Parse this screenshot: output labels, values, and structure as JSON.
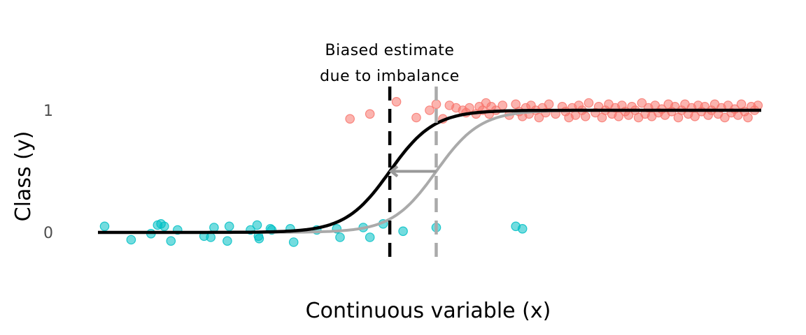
{
  "chart_data": {
    "type": "scatter",
    "xlabel": "Continuous variable (x)",
    "ylabel": "Class (y)",
    "xlim": [
      0,
      100
    ],
    "ylim": [
      -0.3,
      1.3
    ],
    "y_ticks": [
      0,
      1
    ],
    "grid": false,
    "legend": "none",
    "colors": {
      "class0": "#00BFC4",
      "class1": "#F8766D",
      "biased_curve": "#000000",
      "true_curve": "#AAAAAA",
      "arrow": "#999999"
    },
    "annotation": [
      "Biased estimate",
      "due to imbalance"
    ],
    "biased_threshold": 44,
    "true_threshold": 51,
    "curve_steepness": 0.3,
    "x_range": [
      0,
      100
    ],
    "series": [
      {
        "class": 0,
        "points": [
          [
            1,
            0.05
          ],
          [
            5,
            -0.06
          ],
          [
            8,
            -0.01
          ],
          [
            9,
            0.06
          ],
          [
            9.5,
            0.07
          ],
          [
            10,
            0.05
          ],
          [
            11,
            -0.07
          ],
          [
            12,
            0.02
          ],
          [
            16,
            -0.03
          ],
          [
            17,
            -0.04
          ],
          [
            17.5,
            0.04
          ],
          [
            19.5,
            -0.07
          ],
          [
            19.8,
            0.05
          ],
          [
            23,
            0.02
          ],
          [
            24,
            0.06
          ],
          [
            24.2,
            -0.03
          ],
          [
            24.3,
            -0.05
          ],
          [
            26,
            0.03
          ],
          [
            26.2,
            0.02
          ],
          [
            29,
            0.03
          ],
          [
            29.5,
            -0.08
          ],
          [
            33,
            0.02
          ],
          [
            36,
            0.03
          ],
          [
            36.5,
            -0.04
          ],
          [
            40,
            0.04
          ],
          [
            41,
            -0.04
          ],
          [
            43,
            0.07
          ],
          [
            46,
            0.01
          ],
          [
            51,
            0.04
          ],
          [
            63,
            0.05
          ],
          [
            64,
            0.03
          ]
        ]
      },
      {
        "class": 1,
        "points": [
          [
            38,
            0.93
          ],
          [
            41,
            0.97
          ],
          [
            45,
            1.07
          ],
          [
            48,
            0.94
          ],
          [
            50,
            1.0
          ],
          [
            51,
            1.05
          ],
          [
            52,
            0.93
          ],
          [
            53,
            1.04
          ],
          [
            54,
            1.02
          ],
          [
            55,
            1.0
          ],
          [
            55.5,
            0.98
          ],
          [
            56,
            1.02
          ],
          [
            57,
            0.97
          ],
          [
            57.5,
            1.03
          ],
          [
            58,
            1.0
          ],
          [
            58.5,
            1.06
          ],
          [
            59,
            0.97
          ],
          [
            59.3,
            1.03
          ],
          [
            60,
            1.0
          ],
          [
            61,
            1.04
          ],
          [
            62,
            0.96
          ],
          [
            63,
            1.05
          ],
          [
            63.5,
            0.99
          ],
          [
            64,
            0.95
          ],
          [
            64.5,
            1.02
          ],
          [
            65,
            0.97
          ],
          [
            65.3,
            1.04
          ],
          [
            66,
            1.0
          ],
          [
            66.5,
            0.94
          ],
          [
            67,
            1.02
          ],
          [
            67.5,
            0.98
          ],
          [
            68,
            1.05
          ],
          [
            69,
            0.97
          ],
          [
            70,
            1.03
          ],
          [
            70.5,
            0.99
          ],
          [
            71,
            0.94
          ],
          [
            71.5,
            1.02
          ],
          [
            72,
            0.96
          ],
          [
            72.5,
            1.04
          ],
          [
            73,
            1.0
          ],
          [
            73.5,
            0.95
          ],
          [
            74,
            1.06
          ],
          [
            75,
            0.98
          ],
          [
            75.5,
            1.03
          ],
          [
            76,
            0.94
          ],
          [
            76.5,
            1.0
          ],
          [
            77,
            1.05
          ],
          [
            77.5,
            0.97
          ],
          [
            78,
            1.02
          ],
          [
            78.5,
            0.95
          ],
          [
            79,
            1.04
          ],
          [
            79.5,
            0.99
          ],
          [
            80,
            0.96
          ],
          [
            80.5,
            1.03
          ],
          [
            81,
            1.0
          ],
          [
            81.5,
            0.94
          ],
          [
            82,
            1.06
          ],
          [
            82.5,
            0.97
          ],
          [
            83,
            1.02
          ],
          [
            83.5,
            0.95
          ],
          [
            84,
            1.04
          ],
          [
            84.5,
            0.98
          ],
          [
            85,
            1.01
          ],
          [
            85.5,
            0.96
          ],
          [
            86,
            1.05
          ],
          [
            86.5,
            0.99
          ],
          [
            87,
            1.03
          ],
          [
            87.5,
            0.94
          ],
          [
            88,
            1.0
          ],
          [
            88.5,
            1.05
          ],
          [
            89,
            0.97
          ],
          [
            89.5,
            1.02
          ],
          [
            90,
            0.95
          ],
          [
            90.5,
            1.04
          ],
          [
            91,
            0.99
          ],
          [
            91.5,
            1.03
          ],
          [
            92,
            0.96
          ],
          [
            92.5,
            1.0
          ],
          [
            93,
            1.05
          ],
          [
            93.5,
            0.97
          ],
          [
            94,
            1.02
          ],
          [
            94.5,
            0.94
          ],
          [
            95,
            1.04
          ],
          [
            95.5,
            0.98
          ],
          [
            96,
            1.01
          ],
          [
            96.5,
            0.96
          ],
          [
            97,
            1.05
          ],
          [
            97.5,
            0.99
          ],
          [
            98,
            0.94
          ],
          [
            98.5,
            1.03
          ],
          [
            99,
            1.0
          ],
          [
            99.5,
            1.04
          ]
        ]
      }
    ]
  }
}
